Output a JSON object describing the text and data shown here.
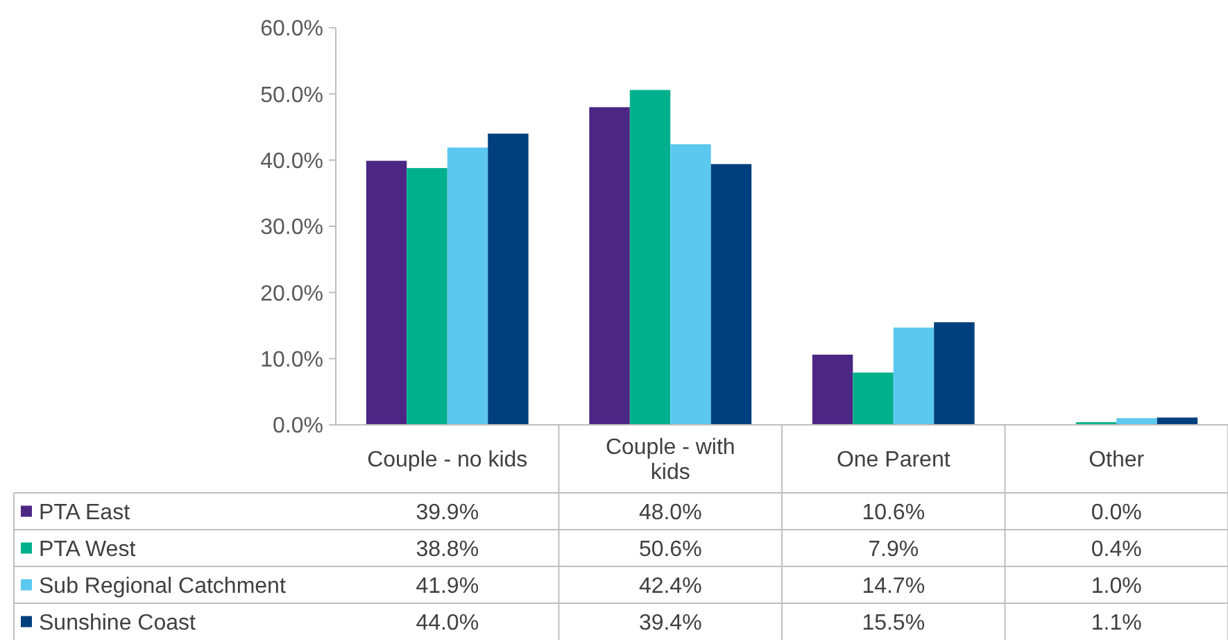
{
  "chart_data": {
    "type": "bar",
    "categories": [
      "Couple - no kids",
      "Couple - with kids",
      "One Parent",
      "Other"
    ],
    "series": [
      {
        "name": "PTA East",
        "color": "#4b2683",
        "values": [
          39.9,
          48.0,
          10.6,
          0.0
        ],
        "value_labels": [
          "39.9%",
          "48.0%",
          "10.6%",
          "0.0%"
        ]
      },
      {
        "name": "PTA West",
        "color": "#00b08c",
        "values": [
          38.8,
          50.6,
          7.9,
          0.4
        ],
        "value_labels": [
          "38.8%",
          "50.6%",
          "7.9%",
          "0.4%"
        ]
      },
      {
        "name": "Sub Regional Catchment",
        "color": "#5bc8f0",
        "values": [
          41.9,
          42.4,
          14.7,
          1.0
        ],
        "value_labels": [
          "41.9%",
          "42.4%",
          "14.7%",
          "1.0%"
        ]
      },
      {
        "name": "Sunshine Coast",
        "color": "#003f7d",
        "values": [
          44.0,
          39.4,
          15.5,
          1.1
        ],
        "value_labels": [
          "44.0%",
          "39.4%",
          "15.5%",
          "1.1%"
        ]
      }
    ],
    "ylim": [
      0,
      60
    ],
    "yticks": [
      {
        "value": 0,
        "label": "0.0%"
      },
      {
        "value": 10,
        "label": "10.0%"
      },
      {
        "value": 20,
        "label": "20.0%"
      },
      {
        "value": 30,
        "label": "30.0%"
      },
      {
        "value": 40,
        "label": "40.0%"
      },
      {
        "value": 50,
        "label": "50.0%"
      },
      {
        "value": 60,
        "label": "60.0%"
      }
    ],
    "legend": "bottom"
  }
}
